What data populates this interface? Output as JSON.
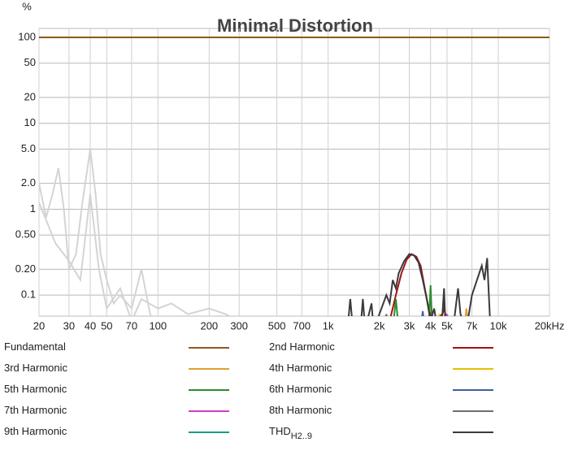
{
  "chart_data": {
    "type": "line",
    "title": "Minimal Distortion",
    "y_unit": "%",
    "xscale": "log",
    "yscale": "log",
    "grid": true,
    "xlim": [
      20,
      20000
    ],
    "ylim": [
      0.057,
      127
    ],
    "xticks": [
      20,
      30,
      40,
      50,
      70,
      100,
      200,
      300,
      500,
      700,
      {
        "value": 1000,
        "label": "1k"
      },
      {
        "value": 2000,
        "label": "2k"
      },
      {
        "value": 3000,
        "label": "3k"
      },
      {
        "value": 4000,
        "label": "4k"
      },
      {
        "value": 5000,
        "label": "5k"
      },
      {
        "value": 7000,
        "label": "7k"
      },
      {
        "value": 10000,
        "label": "10k"
      },
      {
        "value": 20000,
        "label": "20kHz"
      }
    ],
    "yticks": [
      100,
      50,
      20,
      10,
      {
        "value": 5,
        "label": "5.0"
      },
      {
        "value": 2,
        "label": "2.0"
      },
      1,
      {
        "value": 0.5,
        "label": "0.50"
      },
      {
        "value": 0.2,
        "label": "0.20"
      },
      0.1
    ],
    "series": [
      {
        "name": "Fundamental",
        "color": "#8c5a1e",
        "x": [
          20,
          20000
        ],
        "values": [
          100,
          100
        ]
      },
      {
        "name": "2nd Harmonic",
        "color": "#a01414",
        "x": [
          2300,
          2500,
          2700,
          2900,
          3100,
          3300,
          3500,
          3700,
          3900,
          4100,
          4700,
          4800,
          5000
        ],
        "values": [
          0.05,
          0.1,
          0.18,
          0.26,
          0.3,
          0.28,
          0.22,
          0.12,
          0.07,
          0.05,
          0.06,
          0.07,
          0.05
        ]
      },
      {
        "name": "3rd Harmonic",
        "color": "#e0a030",
        "x": [
          6300,
          6500,
          6700
        ],
        "values": [
          0.04,
          0.07,
          0.04
        ]
      },
      {
        "name": "4th Harmonic",
        "color": "#e6c000",
        "x": [
          4400,
          4500,
          4600
        ],
        "values": [
          0.04,
          0.06,
          0.04
        ]
      },
      {
        "name": "5th Harmonic",
        "color": "#2e8b2e",
        "x": [
          2400,
          2500,
          2600,
          3900,
          4000,
          4100
        ],
        "values": [
          0.04,
          0.09,
          0.04,
          0.04,
          0.13,
          0.04
        ]
      },
      {
        "name": "6th Harmonic",
        "color": "#3f5f9f",
        "x": [
          3500,
          3600,
          3700
        ],
        "values": [
          0.04,
          0.065,
          0.04
        ]
      },
      {
        "name": "7th Harmonic",
        "color": "#d040c0",
        "x": [
          4800,
          5000,
          5200
        ],
        "values": [
          0.04,
          0.06,
          0.04
        ]
      },
      {
        "name": "8th Harmonic",
        "color": "#6e6e6e",
        "x": [
          2100,
          2200,
          2300
        ],
        "values": [
          0.04,
          0.06,
          0.04
        ]
      },
      {
        "name": "9th Harmonic",
        "color": "#1a9a8a",
        "x": [
          6000,
          6200,
          6400
        ],
        "values": [
          0.04,
          0.05,
          0.04
        ]
      },
      {
        "name": "THD",
        "name_subscript": "H2..9",
        "color": "#3a3a3a",
        "x": [
          1300,
          1350,
          1400,
          1550,
          1600,
          1650,
          1800,
          1850,
          2000,
          2200,
          2300,
          2400,
          2500,
          2600,
          2800,
          3000,
          3200,
          3400,
          3600,
          3800,
          4000,
          4200,
          4400,
          4700,
          4800,
          4900,
          5500,
          5800,
          6000,
          6500,
          7000,
          7500,
          8000,
          8300,
          8600,
          8800,
          9000
        ],
        "values": [
          0.04,
          0.09,
          0.04,
          0.04,
          0.09,
          0.04,
          0.08,
          0.04,
          0.06,
          0.1,
          0.08,
          0.15,
          0.12,
          0.18,
          0.25,
          0.3,
          0.29,
          0.24,
          0.15,
          0.09,
          0.05,
          0.07,
          0.04,
          0.06,
          0.12,
          0.04,
          0.05,
          0.12,
          0.06,
          0.04,
          0.1,
          0.15,
          0.22,
          0.15,
          0.27,
          0.1,
          0.04
        ]
      }
    ],
    "background_traces": [
      {
        "color": "#d4d4d4",
        "x": [
          20,
          22,
          24,
          26,
          28,
          30,
          33,
          36,
          40,
          43,
          46,
          50,
          55,
          60,
          70,
          80,
          90,
          100
        ],
        "values": [
          2,
          0.8,
          1.5,
          3,
          1,
          0.2,
          0.3,
          1.2,
          5,
          1.5,
          0.3,
          0.15,
          0.08,
          0.1,
          0.07,
          0.2,
          0.06,
          0.04
        ]
      },
      {
        "color": "#d4d4d4",
        "x": [
          20,
          25,
          30,
          35,
          40,
          45,
          50,
          60,
          70,
          80,
          100,
          120,
          150,
          200,
          250,
          300
        ],
        "values": [
          1.2,
          0.4,
          0.25,
          0.15,
          1.5,
          0.2,
          0.07,
          0.12,
          0.05,
          0.09,
          0.07,
          0.08,
          0.06,
          0.07,
          0.06,
          0.05
        ]
      }
    ]
  }
}
